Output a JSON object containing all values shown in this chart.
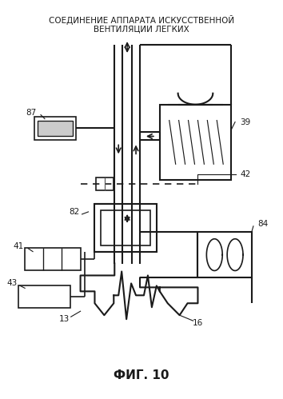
{
  "title_line1": "СОЕДИНЕНИЕ АППАРАТА ИСКУССТВЕННОЙ",
  "title_line2": "ВЕНТИЛЯЦИИ ЛЕГКИХ",
  "fig_label": "ФИГ. 10",
  "lw": 1.2,
  "bg_color": "#ffffff",
  "line_color": "#1a1a1a",
  "gray_color": "#888888"
}
